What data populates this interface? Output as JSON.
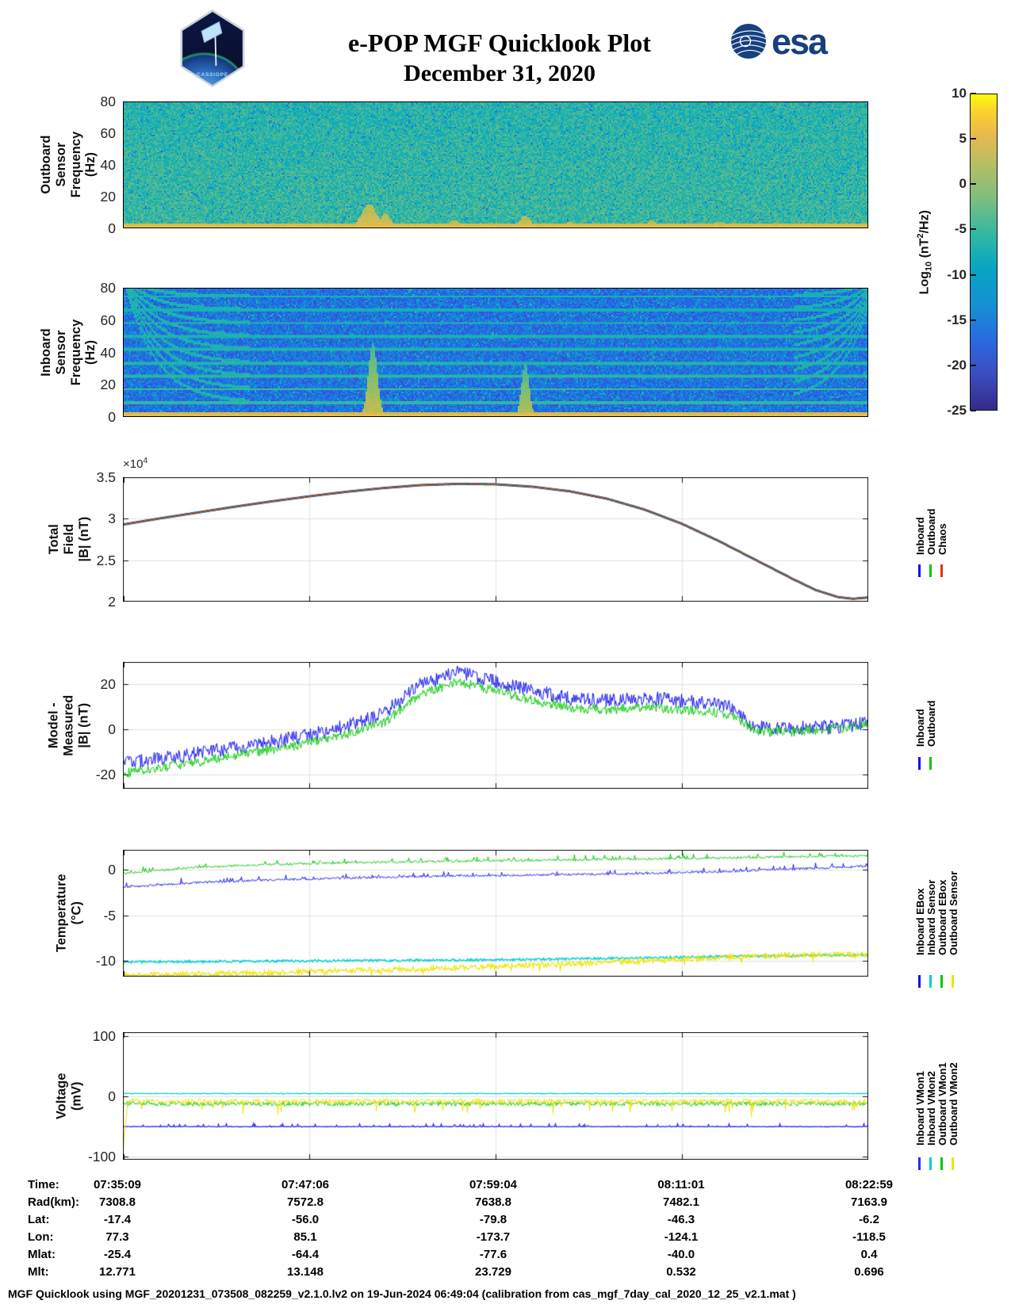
{
  "page": {
    "title": "e-POP MGF Quicklook Plot",
    "subtitle": "December 31, 2020",
    "footer": "MGF Quicklook using MGF_20201231_073508_082259_v2.1.0.lv2 on 19-Jun-2024 06:49:04 (calibration from cas_mgf_7day_cal_2020_12_25_v2.1.mat )"
  },
  "logos": {
    "esa_text": "esa",
    "patch_text": "CASSIOPE"
  },
  "colorbar": {
    "label_pre": "Log",
    "label_sub": "10",
    "label_mid": " (nT",
    "label_sup": "2",
    "label_post": "/Hz)",
    "vmax": 10,
    "vmin": -25,
    "ticks": [
      10,
      5,
      0,
      -5,
      -10,
      -15,
      -20,
      -25
    ]
  },
  "chart_data": [
    {
      "type": "heatmap",
      "name": "outboard-spectrogram",
      "ylabel": "Outboard Sensor\nFrequency (Hz)",
      "ylim": [
        0,
        80
      ],
      "yticks": [
        0,
        20,
        40,
        60,
        80
      ],
      "colormap": "parula",
      "color_scale_log10_nT2Hz": [
        -25,
        10
      ],
      "base_level": -5.2,
      "noise_spread": 5.8,
      "top_fade": 1.3,
      "bottom_band": {
        "fmax": 3,
        "level": 3.2
      },
      "bursts": [
        {
          "t": 0.33,
          "fmax": 15,
          "w": 0.01,
          "level": -1,
          "boost": 4
        },
        {
          "t": 0.352,
          "fmax": 9,
          "w": 0.007,
          "level": -1,
          "boost": 4
        },
        {
          "t": 0.445,
          "fmax": 5,
          "w": 0.006,
          "level": -2,
          "boost": 5
        },
        {
          "t": 0.54,
          "fmax": 8,
          "w": 0.007,
          "level": -2,
          "boost": 5
        },
        {
          "t": 0.6,
          "fmax": 4,
          "w": 0.005,
          "level": -2,
          "boost": 5
        },
        {
          "t": 0.71,
          "fmax": 5,
          "w": 0.006,
          "level": -2,
          "boost": 5
        },
        {
          "t": 0.8,
          "fmax": 4,
          "w": 0.009,
          "level": -3,
          "boost": 5
        }
      ]
    },
    {
      "type": "heatmap",
      "name": "inboard-spectrogram",
      "ylabel": "Inboard Sensor\nFrequency (Hz)",
      "ylim": [
        0,
        80
      ],
      "yticks": [
        0,
        20,
        40,
        60,
        80
      ],
      "colormap": "parula",
      "color_scale_log10_nT2Hz": [
        -25,
        10
      ],
      "base_level": -14.3,
      "noise_spread": 7.5,
      "top_fade": 0,
      "harmonic_lines_hz": [
        8.3,
        16.7,
        25,
        33.3,
        41.7,
        50,
        58.3,
        66.7,
        75
      ],
      "chirps": {
        "left_end_t": 0.17,
        "right_start_t": 0.9,
        "decay": 24
      },
      "bottom_band": {
        "fmax": 2.6,
        "level": 3.5
      },
      "bursts": [
        {
          "t": 0.335,
          "fmax": 46,
          "w": 0.006,
          "level": -8,
          "boost": 9
        },
        {
          "t": 0.54,
          "fmax": 34,
          "w": 0.005,
          "level": -9,
          "boost": 9
        }
      ]
    },
    {
      "type": "line",
      "name": "total-field",
      "ylabel": "Total Field\n|B| (nT)",
      "ylim": [
        20000,
        35000
      ],
      "yticks": [
        20000,
        25000,
        30000,
        35000
      ],
      "ytick_labels": [
        "2",
        "2.5",
        "3",
        "3.5"
      ],
      "y_multiplier_base": "×10",
      "y_multiplier_exp": "4",
      "legend": [
        {
          "label": "Inboard",
          "color": "#0b0bf0"
        },
        {
          "label": "Outboard",
          "color": "#00c800"
        },
        {
          "label": "Chaos",
          "color": "#e03010"
        }
      ],
      "overlay_colors": [
        {
          "color": "#0b0bf0",
          "width": 2.8
        },
        {
          "color": "#00c800",
          "width": 1.9
        },
        {
          "color": "#e03010",
          "width": 1.15
        }
      ],
      "x": [
        0,
        0.05,
        0.1,
        0.15,
        0.2,
        0.25,
        0.3,
        0.35,
        0.4,
        0.45,
        0.5,
        0.55,
        0.6,
        0.65,
        0.7,
        0.75,
        0.8,
        0.85,
        0.9,
        0.93,
        0.96,
        0.98,
        1.0
      ],
      "series": [
        {
          "name": "Inboard / Outboard / Chaos (curves overlap)",
          "values": [
            29300,
            30050,
            30750,
            31450,
            32100,
            32700,
            33250,
            33700,
            34050,
            34200,
            34150,
            33850,
            33300,
            32400,
            31100,
            29400,
            27300,
            25000,
            22700,
            21400,
            20550,
            20350,
            20500
          ]
        }
      ]
    },
    {
      "type": "line",
      "name": "model-minus-measured",
      "ylabel": "Model - Measured\n|B| (nT)",
      "ylim": [
        -26.3,
        29.8
      ],
      "yticks": [
        -20,
        0,
        20
      ],
      "legend": [
        {
          "label": "Inboard",
          "color": "#0b0bf0"
        },
        {
          "label": "Outboard",
          "color": "#00c800"
        }
      ],
      "x": [
        0,
        0.05,
        0.1,
        0.15,
        0.2,
        0.25,
        0.3,
        0.35,
        0.4,
        0.45,
        0.5,
        0.55,
        0.6,
        0.65,
        0.7,
        0.75,
        0.8,
        0.82,
        0.85,
        0.9,
        0.95,
        1.0
      ],
      "series": [
        {
          "name": "Inboard",
          "color": "#0b0bf0",
          "width": 1,
          "noise": 3.2,
          "values": [
            -15,
            -13,
            -10.5,
            -8,
            -5.5,
            -2.5,
            1.5,
            7,
            20,
            25,
            21,
            17,
            13.5,
            12.5,
            14,
            12.5,
            11,
            9,
            1,
            0.5,
            1,
            2.5
          ]
        },
        {
          "name": "Outboard",
          "color": "#00c800",
          "width": 1,
          "noise": 2.2,
          "values": [
            -19.5,
            -17,
            -14.5,
            -11.5,
            -9,
            -6,
            -2,
            3,
            16,
            21,
            17,
            13,
            9.5,
            8.5,
            10,
            8.5,
            7.5,
            6,
            -1,
            -1,
            0,
            2
          ]
        }
      ]
    },
    {
      "type": "line",
      "name": "temperature",
      "ylabel": "Temperature\n(°C)",
      "ylim": [
        -11.7,
        2.2
      ],
      "yticks": [
        -10,
        -5,
        0
      ],
      "legend": [
        {
          "label": "Inboard EBox",
          "color": "#1414e8"
        },
        {
          "label": "Inboard Sensor",
          "color": "#00d0d0"
        },
        {
          "label": "Outboard EBox",
          "color": "#00c800"
        },
        {
          "label": "Outboard Sensor",
          "color": "#efe400"
        }
      ],
      "x": [
        0,
        0.1,
        0.2,
        0.3,
        0.4,
        0.5,
        0.6,
        0.7,
        0.8,
        0.9,
        1.0
      ],
      "series": [
        {
          "name": "Inboard Sensor",
          "color": "#00d0d0",
          "width": 1.4,
          "noise": 0.13,
          "values": [
            -10.1,
            -10.05,
            -10.0,
            -9.95,
            -9.9,
            -9.85,
            -9.75,
            -9.65,
            -9.5,
            -9.4,
            -9.3
          ]
        },
        {
          "name": "Outboard Sensor",
          "color": "#efe400",
          "width": 1.2,
          "noise": 0.28,
          "spike": {
            "rate": 0.05,
            "amp": -0.5
          },
          "values": [
            -11.5,
            -11.4,
            -11.25,
            -11.05,
            -10.85,
            -10.6,
            -10.3,
            -9.95,
            -9.6,
            -9.35,
            -9.25
          ]
        },
        {
          "name": "Inboard EBox",
          "color": "#1414e8",
          "width": 1,
          "noise": 0.12,
          "spike": {
            "rate": 0.1,
            "amp": 0.55
          },
          "values": [
            -1.9,
            -1.4,
            -1.1,
            -0.9,
            -0.7,
            -0.6,
            -0.5,
            -0.4,
            -0.2,
            0.1,
            0.4
          ]
        },
        {
          "name": "Outboard EBox",
          "color": "#00c800",
          "width": 1,
          "noise": 0.12,
          "spike": {
            "rate": 0.1,
            "amp": 0.5
          },
          "values": [
            -0.4,
            0.3,
            0.6,
            0.8,
            0.9,
            1.0,
            1.1,
            1.2,
            1.3,
            1.45,
            1.55
          ]
        }
      ]
    },
    {
      "type": "line",
      "name": "voltage",
      "ylabel": "Voltage\n(mV)",
      "ylim": [
        -105,
        107
      ],
      "yticks": [
        -100,
        0,
        100
      ],
      "legend": [
        {
          "label": "Inboard VMon1",
          "color": "#2a2af0"
        },
        {
          "label": "Inboard VMon2",
          "color": "#00d0d0"
        },
        {
          "label": "Outboard VMon1",
          "color": "#00c800"
        },
        {
          "label": "Outboard VMon2",
          "color": "#efe400"
        }
      ],
      "series": [
        {
          "name": "Inboard VMon1",
          "color": "#2a2af0",
          "width": 1.3,
          "base": -50,
          "noise": 0.4,
          "spike": {
            "rate": 0.07,
            "amp": 5
          }
        },
        {
          "name": "Inboard VMon2",
          "color": "#00d0d0",
          "width": 1.2,
          "base": 5,
          "noise": 0.6
        },
        {
          "name": "Outboard VMon1",
          "color": "#00c800",
          "width": 1,
          "base": -12,
          "noise": 3.8
        },
        {
          "name": "Outboard VMon2",
          "color": "#efe400",
          "width": 1,
          "base": -8,
          "noise": 4.5,
          "spike": {
            "rate": 0.05,
            "amp": -24
          },
          "dip_left": -78
        }
      ]
    }
  ],
  "table": {
    "rows": [
      {
        "label": "Time:",
        "values": [
          "07:35:09",
          "07:47:06",
          "07:59:04",
          "08:11:01",
          "08:22:59"
        ]
      },
      {
        "label": "Rad(km):",
        "values": [
          "7308.8",
          "7572.8",
          "7638.8",
          "7482.1",
          "7163.9"
        ]
      },
      {
        "label": "Lat:",
        "values": [
          "-17.4",
          "-56.0",
          "-79.8",
          "-46.3",
          "-6.2"
        ]
      },
      {
        "label": "Lon:",
        "values": [
          "77.3",
          "85.1",
          "-173.7",
          "-124.1",
          "-118.5"
        ]
      },
      {
        "label": "Mlat:",
        "values": [
          "-25.4",
          "-64.4",
          "-77.6",
          "-40.0",
          "0.4"
        ]
      },
      {
        "label": "Mlt:",
        "values": [
          "12.771",
          "13.148",
          "23.729",
          "0.532",
          "0.696"
        ]
      }
    ]
  }
}
